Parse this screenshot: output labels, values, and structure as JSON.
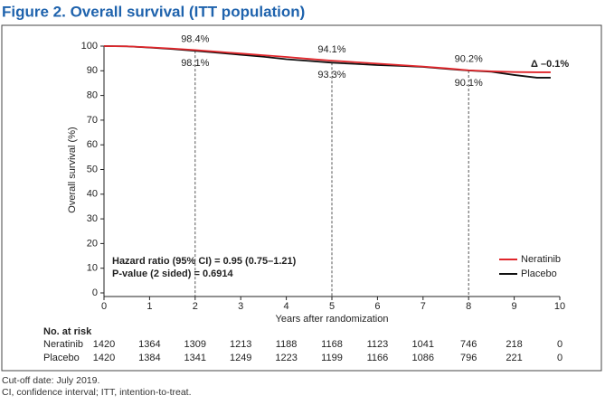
{
  "chart_data": {
    "type": "line",
    "title": "Figure 2. Overall survival (ITT population)",
    "xlabel": "Years after randomization",
    "ylabel": "Overall survival (%)",
    "x": [
      0,
      0.5,
      1,
      1.5,
      2,
      2.5,
      3,
      3.5,
      4,
      4.5,
      5,
      5.5,
      6,
      6.5,
      7,
      7.5,
      8,
      8.5,
      9,
      9.5,
      9.8
    ],
    "series": [
      {
        "name": "Neratinib",
        "color": "#e0262b",
        "values": [
          100,
          99.9,
          99.5,
          99,
          98.4,
          97.7,
          97,
          96.3,
          95.6,
          94.8,
          94.1,
          93.5,
          92.9,
          92.3,
          91.7,
          91,
          90.2,
          89.8,
          89.5,
          89.4,
          89.4
        ]
      },
      {
        "name": "Placebo",
        "color": "#111111",
        "values": [
          100,
          99.9,
          99.4,
          98.8,
          98.1,
          97.3,
          96.5,
          95.7,
          94.7,
          94,
          93.3,
          92.8,
          92.3,
          92,
          91.6,
          90.8,
          90.1,
          89.6,
          88.3,
          87.2,
          87.2
        ]
      }
    ],
    "xlim": [
      0,
      10
    ],
    "xticks": [
      0,
      1,
      2,
      3,
      4,
      5,
      6,
      7,
      8,
      9,
      10
    ],
    "ylim": [
      0,
      100
    ],
    "yticks": [
      0,
      10,
      20,
      30,
      40,
      50,
      60,
      70,
      80,
      90,
      100
    ],
    "legend": "lower right",
    "landmarks": [
      {
        "x": 2,
        "values": [
          98.4,
          98.1
        ],
        "value_labels": [
          "98.4%",
          "98.1%"
        ]
      },
      {
        "x": 5,
        "values": [
          94.1,
          93.3
        ],
        "value_labels": [
          "94.1%",
          "93.3%"
        ]
      },
      {
        "x": 8,
        "values": [
          90.2,
          90.1
        ],
        "value_labels": [
          "90.2%",
          "90.1%"
        ]
      }
    ],
    "delta_label": "Δ –0.1%",
    "stats": [
      "Hazard ratio (95% CI) = 0.95 (0.75–1.21)",
      "P-value (2 sided) = 0.6914"
    ],
    "risk_table": {
      "title": "No. at risk",
      "rows": [
        {
          "name": "Neratinib",
          "values": [
            1420,
            1364,
            1309,
            1213,
            1188,
            1168,
            1123,
            1041,
            746,
            218,
            0
          ]
        },
        {
          "name": "Placebo",
          "values": [
            1420,
            1384,
            1341,
            1249,
            1223,
            1199,
            1166,
            1086,
            796,
            221,
            0
          ]
        }
      ]
    }
  },
  "footnotes": [
    "Cut-off date: July 2019.",
    "CI, confidence interval; ITT, intention-to-treat."
  ]
}
